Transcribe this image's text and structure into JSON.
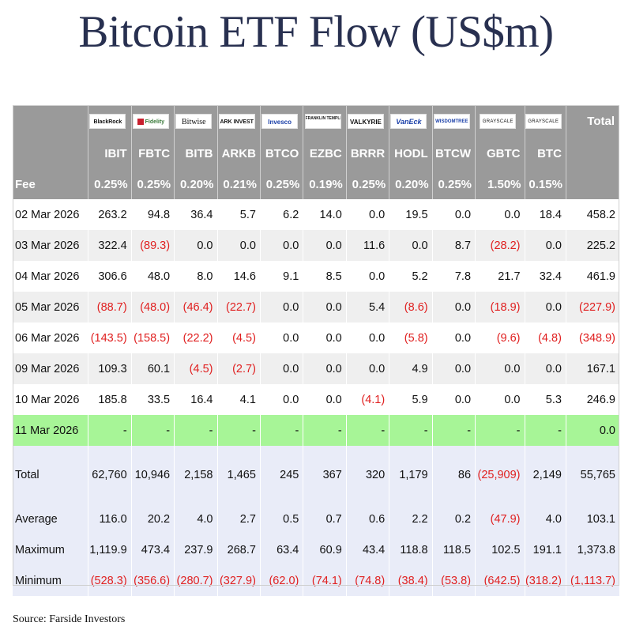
{
  "title": "Bitcoin ETF Flow (US$m)",
  "source": "Source: Farside Investors",
  "issuers": [
    {
      "logo": "BlackRock",
      "ticker": "IBIT",
      "fee": "0.25%"
    },
    {
      "logo": "Fidelity",
      "ticker": "FBTC",
      "fee": "0.25%"
    },
    {
      "logo": "Bitwise",
      "ticker": "BITB",
      "fee": "0.20%"
    },
    {
      "logo": "ARK INVEST",
      "ticker": "ARKB",
      "fee": "0.21%"
    },
    {
      "logo": "Invesco",
      "ticker": "BTCO",
      "fee": "0.25%"
    },
    {
      "logo": "FRANKLIN TEMPLETON",
      "ticker": "EZBC",
      "fee": "0.19%"
    },
    {
      "logo": "VALKYRIE",
      "ticker": "BRRR",
      "fee": "0.25%"
    },
    {
      "logo": "VanEck",
      "ticker": "HODL",
      "fee": "0.20%"
    },
    {
      "logo": "WISDOMTREE",
      "ticker": "BTCW",
      "fee": "0.25%"
    },
    {
      "logo": "GRAYSCALE",
      "ticker": "GBTC",
      "fee": "1.50%"
    },
    {
      "logo": "GRAYSCALE",
      "ticker": "BTC",
      "fee": "0.15%"
    }
  ],
  "header": {
    "total_label": "Total",
    "fee_label": "Fee"
  },
  "days": [
    {
      "date": "02 Mar 2026",
      "values": [
        "263.2",
        "94.8",
        "36.4",
        "5.7",
        "6.2",
        "14.0",
        "0.0",
        "19.5",
        "0.0",
        "0.0",
        "18.4",
        "458.2"
      ]
    },
    {
      "date": "03 Mar 2026",
      "values": [
        "322.4",
        "(89.3)",
        "0.0",
        "0.0",
        "0.0",
        "0.0",
        "11.6",
        "0.0",
        "8.7",
        "(28.2)",
        "0.0",
        "225.2"
      ]
    },
    {
      "date": "04 Mar 2026",
      "values": [
        "306.6",
        "48.0",
        "8.0",
        "14.6",
        "9.1",
        "8.5",
        "0.0",
        "5.2",
        "7.8",
        "21.7",
        "32.4",
        "461.9"
      ]
    },
    {
      "date": "05 Mar 2026",
      "values": [
        "(88.7)",
        "(48.0)",
        "(46.4)",
        "(22.7)",
        "0.0",
        "0.0",
        "5.4",
        "(8.6)",
        "0.0",
        "(18.9)",
        "0.0",
        "(227.9)"
      ]
    },
    {
      "date": "06 Mar 2026",
      "values": [
        "(143.5)",
        "(158.5)",
        "(22.2)",
        "(4.5)",
        "0.0",
        "0.0",
        "0.0",
        "(5.8)",
        "0.0",
        "(9.6)",
        "(4.8)",
        "(348.9)"
      ]
    },
    {
      "date": "09 Mar 2026",
      "values": [
        "109.3",
        "60.1",
        "(4.5)",
        "(2.7)",
        "0.0",
        "0.0",
        "0.0",
        "4.9",
        "0.0",
        "0.0",
        "0.0",
        "167.1"
      ]
    },
    {
      "date": "10 Mar 2026",
      "values": [
        "185.8",
        "33.5",
        "16.4",
        "4.1",
        "0.0",
        "0.0",
        "(4.1)",
        "5.9",
        "0.0",
        "0.0",
        "5.3",
        "246.9"
      ]
    },
    {
      "date": "11 Mar 2026",
      "values": [
        "-",
        "-",
        "-",
        "-",
        "-",
        "-",
        "-",
        "-",
        "-",
        "-",
        "-",
        "0.0"
      ],
      "highlight": true
    }
  ],
  "summary": [
    {
      "label": "Total",
      "values": [
        "62,760",
        "10,946",
        "2,158",
        "1,465",
        "245",
        "367",
        "320",
        "1,179",
        "86",
        "(25,909)",
        "2,149",
        "55,765"
      ]
    },
    {
      "label": "Average",
      "values": [
        "116.0",
        "20.2",
        "4.0",
        "2.7",
        "0.5",
        "0.7",
        "0.6",
        "2.2",
        "0.2",
        "(47.9)",
        "4.0",
        "103.1"
      ]
    },
    {
      "label": "Maximum",
      "values": [
        "1,119.9",
        "473.4",
        "237.9",
        "268.7",
        "63.4",
        "60.9",
        "43.4",
        "118.8",
        "118.5",
        "102.5",
        "191.1",
        "1,373.8"
      ]
    },
    {
      "label": "Minimum",
      "values": [
        "(528.3)",
        "(356.6)",
        "(280.7)",
        "(327.9)",
        "(62.0)",
        "(74.1)",
        "(74.8)",
        "(38.4)",
        "(53.8)",
        "(642.5)",
        "(318.2)",
        "(1,113.7)"
      ]
    }
  ],
  "colors": {
    "header_bg": "#9a9a9a",
    "highlight_row": "#a7f597",
    "summary_bg": "#e9ecf8",
    "negative": "#e02020",
    "title": "#283050"
  }
}
